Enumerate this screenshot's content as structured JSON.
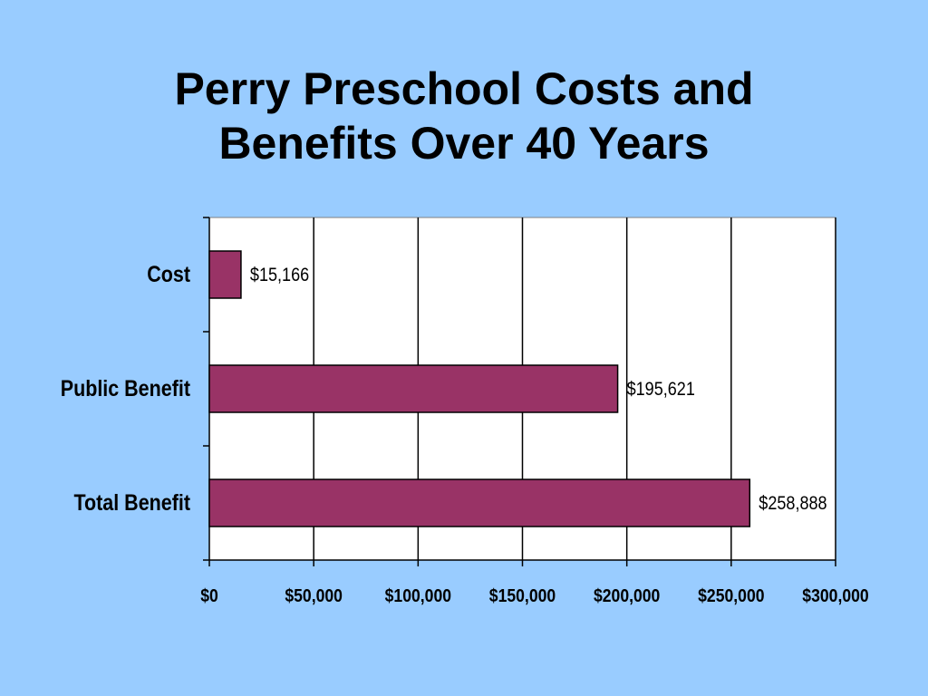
{
  "title_lines": [
    "Perry Preschool Costs and",
    "Benefits Over 40 Years"
  ],
  "chart_data": {
    "type": "bar",
    "orientation": "horizontal",
    "categories": [
      "Cost",
      "Public Benefit",
      "Total Benefit"
    ],
    "values": [
      15166,
      195621,
      258888
    ],
    "value_labels": [
      "$15,166",
      "$195,621",
      "$258,888"
    ],
    "xlim": [
      0,
      300000
    ],
    "x_ticks": [
      0,
      50000,
      100000,
      150000,
      200000,
      250000,
      300000
    ],
    "x_tick_labels": [
      "$0",
      "$50,000",
      "$100,000",
      "$150,000",
      "$200,000",
      "$250,000",
      "$300,000"
    ],
    "grid": "vertical major gridlines",
    "legend": "none",
    "colors": {
      "bar_fill": "#993366",
      "bar_stroke": "#000000",
      "plot_background": "#ffffff",
      "slide_background": "#99ccff"
    }
  }
}
